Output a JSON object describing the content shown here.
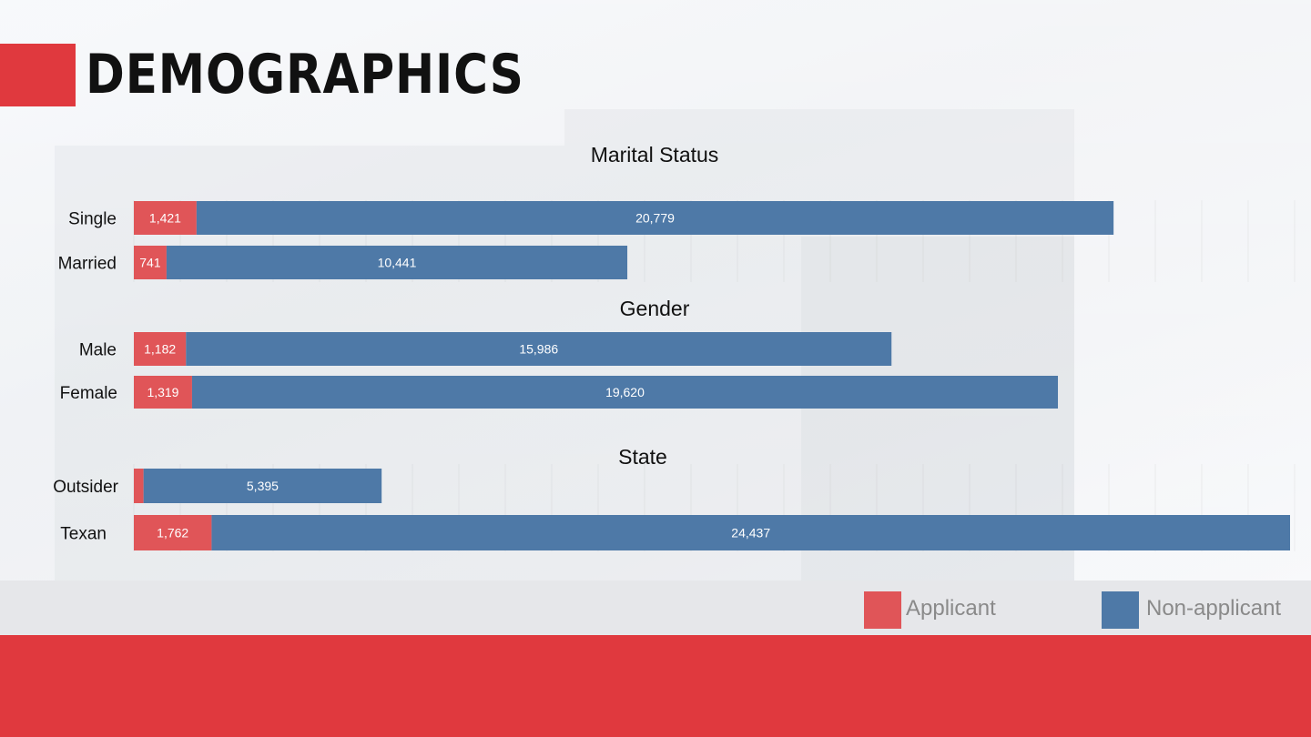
{
  "page": {
    "title": "DEMOGRAPHICS"
  },
  "colors": {
    "accent": "#e0393e",
    "applicant": "#e05558",
    "non_applicant": "#4e79a7",
    "footer": "#e0393e",
    "legend_strip": "#e6e7ea"
  },
  "legend": {
    "items": [
      {
        "label": "Applicant",
        "color": "#e05558"
      },
      {
        "label": "Non-applicant",
        "color": "#4e79a7"
      }
    ]
  },
  "chart_data": [
    {
      "type": "bar",
      "orientation": "horizontal",
      "stacked": true,
      "title": "Marital Status",
      "categories": [
        "Single",
        "Married"
      ],
      "series": [
        {
          "name": "Applicant",
          "values": [
            1421,
            741
          ],
          "labels": [
            "1,421",
            "741"
          ]
        },
        {
          "name": "Non-applicant",
          "values": [
            20779,
            10441
          ],
          "labels": [
            "20,779",
            "10,441"
          ]
        }
      ]
    },
    {
      "type": "bar",
      "orientation": "horizontal",
      "stacked": true,
      "title": "Gender",
      "categories": [
        "Male",
        "Female"
      ],
      "series": [
        {
          "name": "Applicant",
          "values": [
            1182,
            1319
          ],
          "labels": [
            "1,182",
            "1,319"
          ]
        },
        {
          "name": "Non-applicant",
          "values": [
            15986,
            19620
          ],
          "labels": [
            "15,986",
            "19,620"
          ]
        }
      ]
    },
    {
      "type": "bar",
      "orientation": "horizontal",
      "stacked": true,
      "title": "State",
      "categories": [
        "Outsider",
        "Texan"
      ],
      "series": [
        {
          "name": "Applicant",
          "values": [
            220,
            1762
          ],
          "labels": [
            "",
            "1,762"
          ]
        },
        {
          "name": "Non-applicant",
          "values": [
            5395,
            24437
          ],
          "labels": [
            "5,395",
            "24,437"
          ]
        }
      ]
    }
  ]
}
